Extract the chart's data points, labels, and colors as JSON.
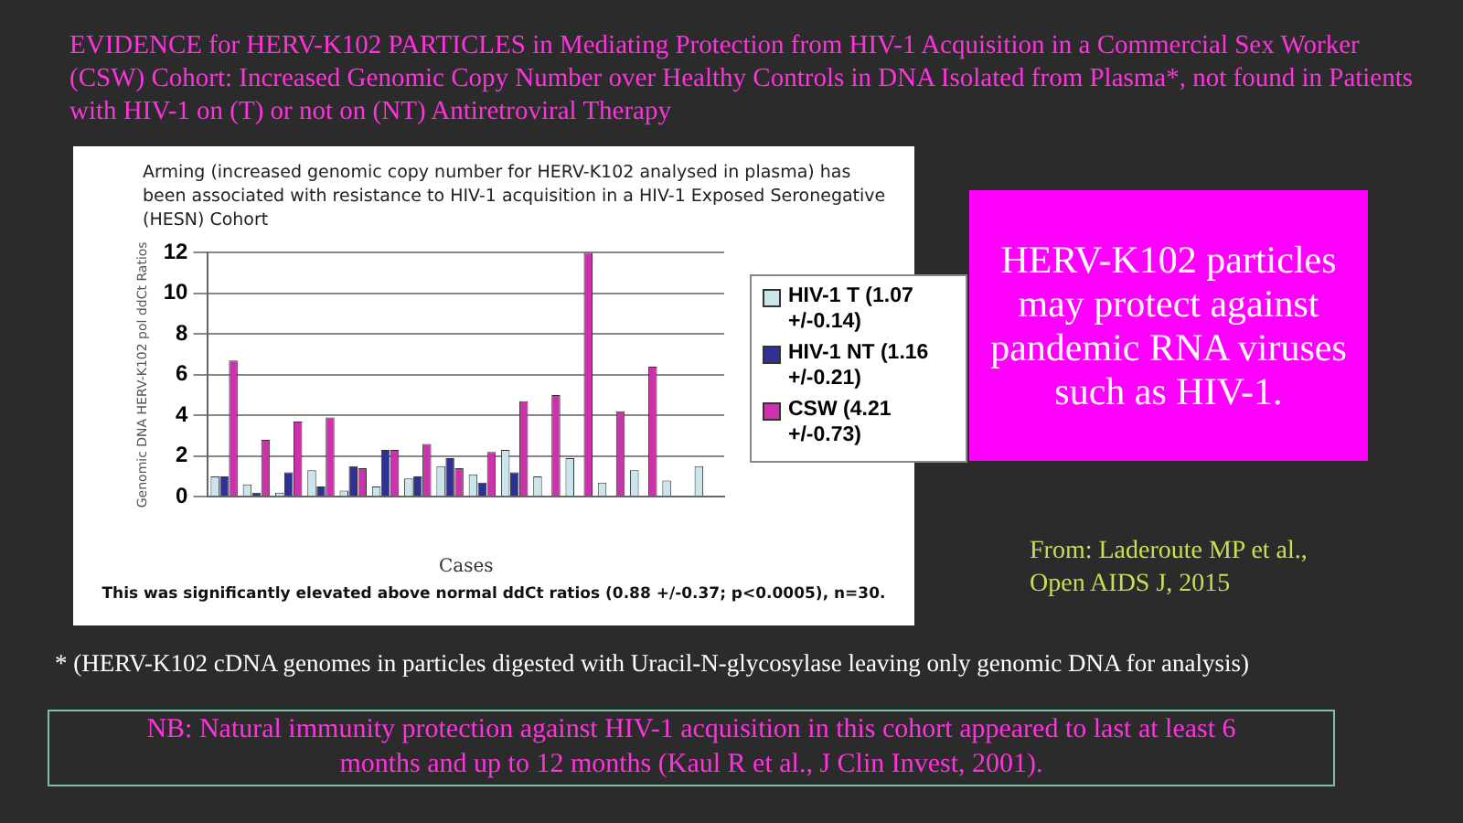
{
  "chart_data": {
    "type": "bar",
    "title": "EVIDENCE for HERV-K102 PARTICLES in Mediating Protection from HIV-1 Acquisition in a Commercial Sex Worker (CSW) Cohort:  Increased Genomic Copy Number over Healthy Controls in DNA Isolated from Plasma*, not found in Patients with HIV-1 on (T) or not on (NT) Antiretroviral Therapy",
    "subtitle": "Arming (increased genomic copy number for HERV-K102 analysed in plasma) has been associated with resistance to HIV-1 acquisition in a HIV-1 Exposed Seronegative (HESN) Cohort",
    "xlabel": "Cases",
    "ylabel": "Genomic DNA HERV-K102 pol ddCt Ratios",
    "categories": [
      null,
      null,
      null,
      null,
      null,
      null,
      null,
      null,
      null,
      null,
      null,
      null,
      null,
      null,
      null,
      null
    ],
    "series": [
      {
        "name": "HIV-1 T (1.07 +/-0.14)",
        "color": "#c8e6ec",
        "values": [
          1.0,
          0.6,
          0.2,
          1.3,
          0.3,
          0.5,
          0.9,
          1.5,
          1.1,
          2.3,
          1.0,
          1.9,
          0.7,
          1.3,
          0.8,
          1.5
        ]
      },
      {
        "name": "HIV-1 NT (1.16 +/-0.21)",
        "color": "#2e3192",
        "values": [
          1.0,
          0.2,
          1.2,
          0.5,
          1.5,
          2.3,
          1.0,
          1.9,
          0.7,
          1.2,
          null,
          null,
          null,
          null,
          null,
          null
        ]
      },
      {
        "name": "CSW (4.21 +/-0.73)",
        "color": "#cc33aa",
        "values": [
          6.7,
          2.8,
          3.7,
          3.9,
          1.4,
          2.3,
          2.6,
          1.4,
          2.2,
          4.7,
          5.0,
          12.0,
          4.2,
          6.4,
          null,
          null
        ]
      }
    ],
    "ylim": [
      0,
      12
    ],
    "yticks": [
      0,
      2,
      4,
      6,
      8,
      10,
      12
    ],
    "grid": "y",
    "legend": "right",
    "annotations": [
      "This was significantly elevated above normal ddCt ratios (0.88 +/-0.37; p<0.0005), n=30.",
      "HERV-K102 particles may protect against pandemic RNA viruses such as HIV-1.",
      "From:  Laderoute MP et al., Open AIDS J, 2015",
      "* (HERV-K102 cDNA genomes in particles digested with Uracil-N-glycosylase leaving only genomic DNA for analysis)",
      "NB: Natural immunity protection against HIV-1 acquisition in this cohort appeared to last at least 6 months and up to 12 months (Kaul R et al., J Clin Invest, 2001)."
    ]
  }
}
